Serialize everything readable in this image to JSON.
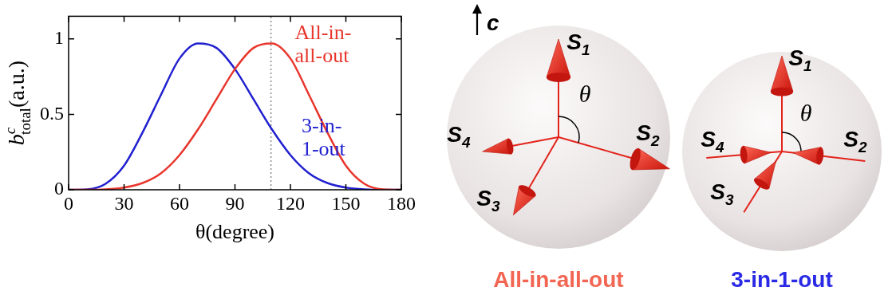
{
  "chart_data": {
    "type": "line",
    "x_label": "θ(degree)",
    "y_label": {
      "base": "b",
      "sup": "c",
      "sub": "total",
      "unit": "(a.u.)"
    },
    "x": [
      0,
      10,
      20,
      30,
      40,
      50,
      60,
      70,
      80,
      90,
      100,
      110,
      120,
      130,
      140,
      150,
      160,
      170,
      180
    ],
    "series": [
      {
        "label_lines": [
          "All-in-",
          "all-out"
        ],
        "color": "#e8362c",
        "values": [
          0,
          0,
          0.003,
          0.015,
          0.045,
          0.11,
          0.23,
          0.4,
          0.6,
          0.8,
          0.94,
          0.97,
          0.87,
          0.63,
          0.38,
          0.16,
          0.04,
          0.003,
          0
        ]
      },
      {
        "label_lines": [
          "3-in-",
          "1-out"
        ],
        "color": "#2020d0",
        "values": [
          0,
          0.003,
          0.04,
          0.16,
          0.38,
          0.63,
          0.87,
          0.97,
          0.94,
          0.8,
          0.6,
          0.4,
          0.23,
          0.11,
          0.045,
          0.015,
          0.003,
          0,
          0
        ]
      }
    ],
    "vline_x": 109.47,
    "xlim": [
      0,
      180
    ],
    "xticks": [
      0,
      30,
      60,
      90,
      120,
      150,
      180
    ],
    "ylim": [
      0,
      1.15
    ],
    "yticks": [
      0,
      0.5,
      1
    ],
    "grid": false
  },
  "diagram": {
    "axis_label": "c",
    "panels": [
      {
        "title": "All-in-all-out",
        "color": "#f26552",
        "angle_label": "θ",
        "spins": [
          {
            "text": "S",
            "sub": "1"
          },
          {
            "text": "S",
            "sub": "2"
          },
          {
            "text": "S",
            "sub": "3"
          },
          {
            "text": "S",
            "sub": "4"
          }
        ]
      },
      {
        "title": "3-in-1-out",
        "color": "#2a2ae6",
        "angle_label": "θ",
        "spins": [
          {
            "text": "S",
            "sub": "1"
          },
          {
            "text": "S",
            "sub": "2"
          },
          {
            "text": "S",
            "sub": "3"
          },
          {
            "text": "S",
            "sub": "4"
          }
        ]
      }
    ]
  }
}
